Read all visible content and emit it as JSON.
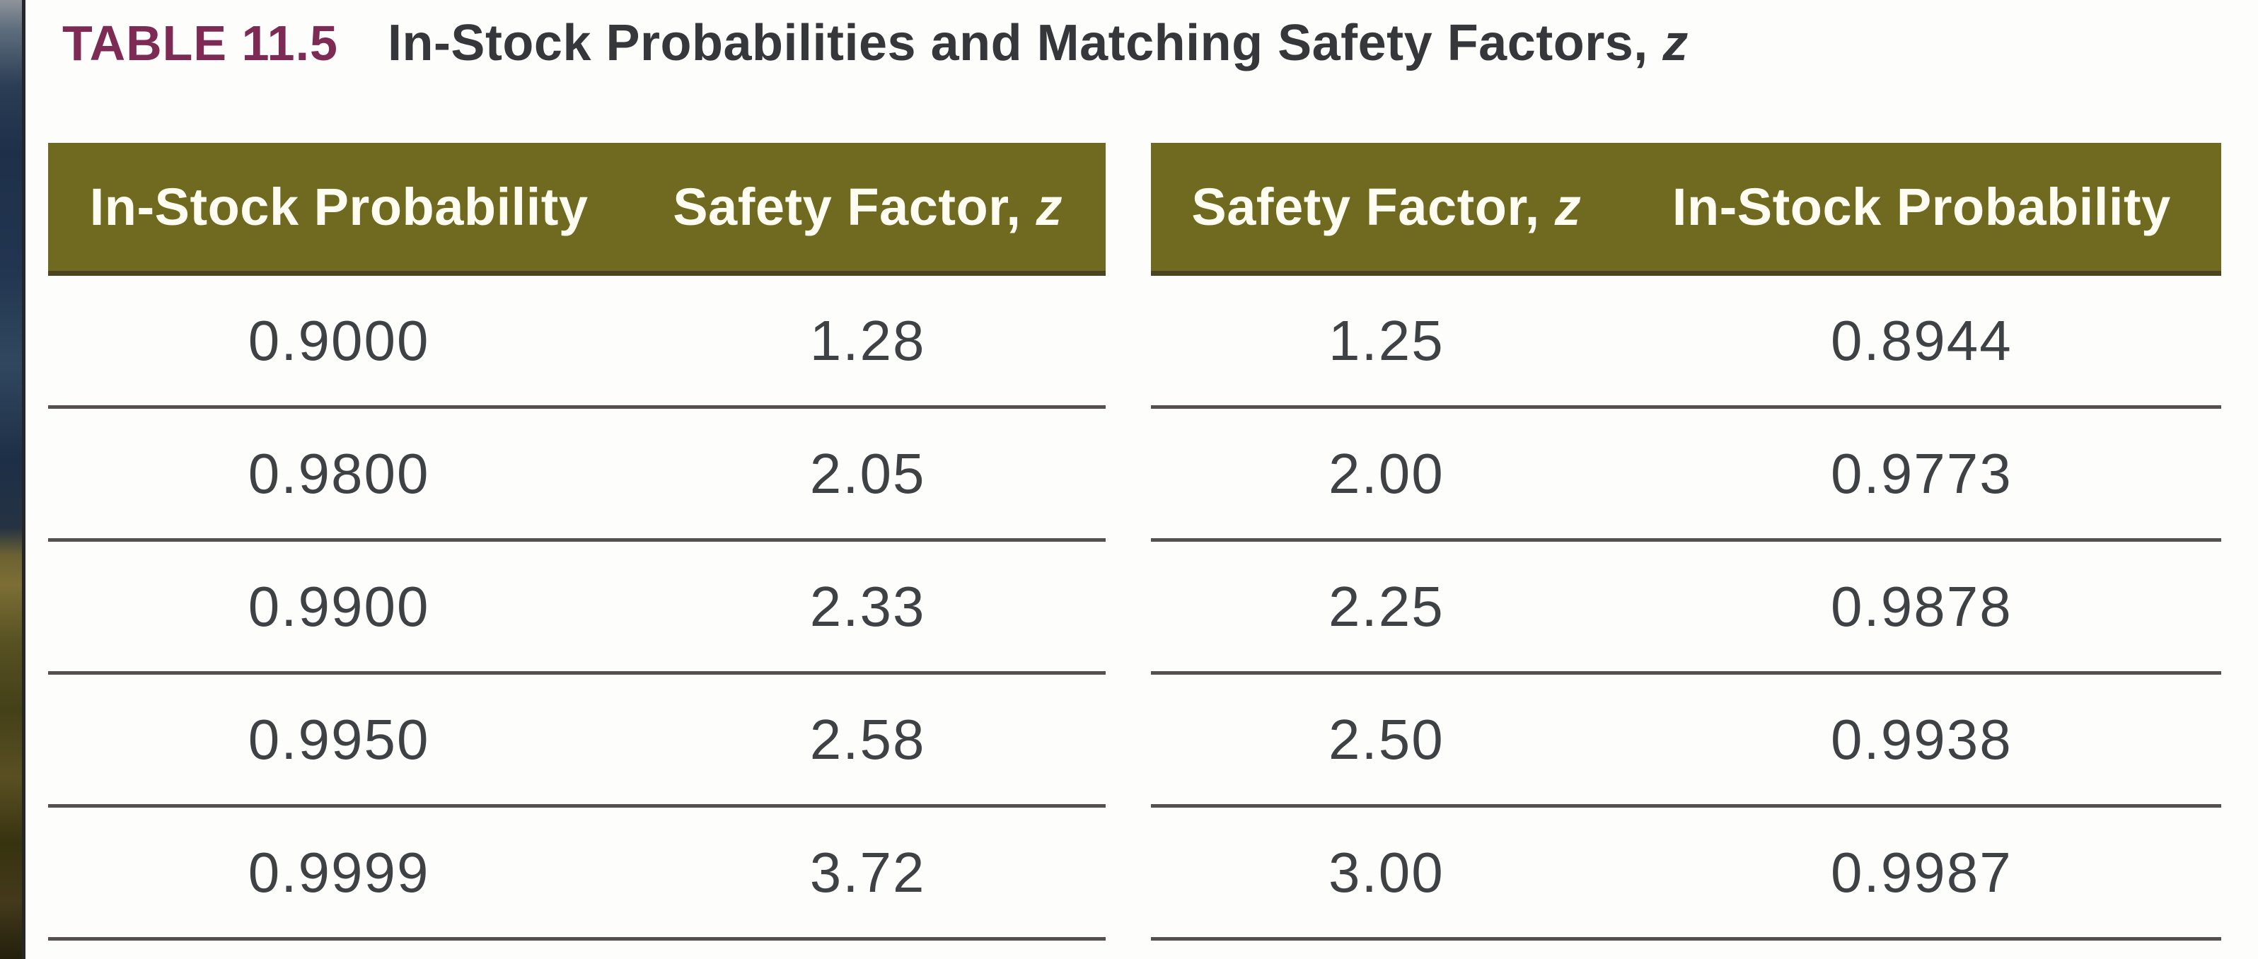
{
  "title": {
    "label": "TABLE 11.5",
    "text": "In-Stock Probabilities and Matching Safety Factors, ",
    "italic_suffix": "z"
  },
  "colors": {
    "header_background": "#6f6a20",
    "header_border_bottom": "#4a4420",
    "table_label_maroon": "#7d2b54",
    "heading_text": "#35373a",
    "data_text": "#3f4245",
    "row_divider": "#55504e",
    "page_background": "#fdfdfc",
    "window_edge": "#24262a"
  },
  "chart_data": {
    "type": "table",
    "title": "TABLE 11.5 In-Stock Probabilities and Matching Safety Factors, z",
    "tables": [
      {
        "columns": [
          "In-Stock Probability",
          "Safety Factor, z"
        ],
        "rows": [
          [
            "0.9000",
            "1.28"
          ],
          [
            "0.9800",
            "2.05"
          ],
          [
            "0.9900",
            "2.33"
          ],
          [
            "0.9950",
            "2.58"
          ],
          [
            "0.9999",
            "3.72"
          ]
        ]
      },
      {
        "columns": [
          "Safety Factor, z",
          "In-Stock Probability"
        ],
        "rows": [
          [
            "1.25",
            "0.8944"
          ],
          [
            "2.00",
            "0.9773"
          ],
          [
            "2.25",
            "0.9878"
          ],
          [
            "2.50",
            "0.9938"
          ],
          [
            "3.00",
            "0.9987"
          ]
        ]
      }
    ]
  },
  "tables": [
    {
      "side": "left",
      "headers": [
        {
          "text": "In-Stock Probability",
          "italic": ""
        },
        {
          "text": "Safety Factor, ",
          "italic": "z"
        }
      ],
      "rows": [
        [
          "0.9000",
          "1.28"
        ],
        [
          "0.9800",
          "2.05"
        ],
        [
          "0.9900",
          "2.33"
        ],
        [
          "0.9950",
          "2.58"
        ],
        [
          "0.9999",
          "3.72"
        ]
      ]
    },
    {
      "side": "right",
      "headers": [
        {
          "text": "Safety Factor, ",
          "italic": "z"
        },
        {
          "text": "In-Stock Probability",
          "italic": ""
        }
      ],
      "rows": [
        [
          "1.25",
          "0.8944"
        ],
        [
          "2.00",
          "0.9773"
        ],
        [
          "2.25",
          "0.9878"
        ],
        [
          "2.50",
          "0.9938"
        ],
        [
          "3.00",
          "0.9987"
        ]
      ]
    }
  ]
}
